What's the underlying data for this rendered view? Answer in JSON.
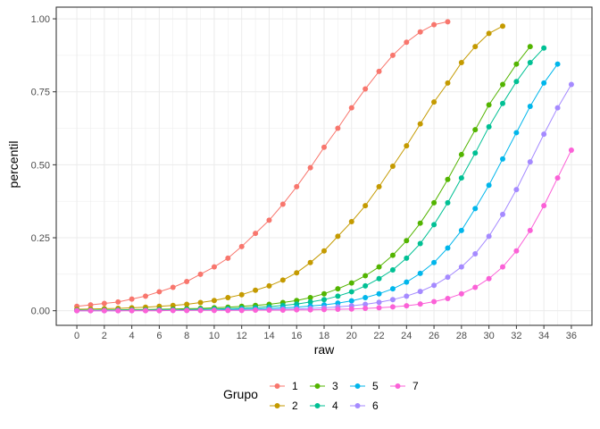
{
  "chart_data": {
    "type": "line",
    "xlabel": "raw",
    "ylabel": "percentil",
    "xlim": [
      -1.5,
      37.5
    ],
    "ylim": [
      -0.05,
      1.04
    ],
    "x_ticks": [
      0,
      2,
      4,
      6,
      8,
      10,
      12,
      14,
      16,
      18,
      20,
      22,
      24,
      26,
      28,
      30,
      32,
      34,
      36
    ],
    "x_tick_labels": [
      "0",
      "2",
      "4",
      "6",
      "8",
      "10",
      "12",
      "14",
      "16",
      "18",
      "20",
      "22",
      "24",
      "26",
      "28",
      "30",
      "32",
      "34",
      "36"
    ],
    "y_ticks": [
      0,
      0.25,
      0.5,
      0.75,
      1
    ],
    "y_tick_labels": [
      "0.00",
      "0.25",
      "0.50",
      "0.75",
      "1.00"
    ],
    "grid": true,
    "legend": {
      "title": "Grupo",
      "position": "bottom"
    },
    "series": [
      {
        "name": "1",
        "color": "#F8766D",
        "x": [
          0,
          1,
          2,
          3,
          4,
          5,
          6,
          7,
          8,
          9,
          10,
          11,
          12,
          13,
          14,
          15,
          16,
          17,
          18,
          19,
          20,
          21,
          22,
          23,
          24,
          25,
          26,
          27
        ],
        "y": [
          0.015,
          0.02,
          0.025,
          0.03,
          0.04,
          0.05,
          0.065,
          0.08,
          0.1,
          0.125,
          0.15,
          0.18,
          0.22,
          0.265,
          0.31,
          0.365,
          0.425,
          0.49,
          0.56,
          0.625,
          0.695,
          0.76,
          0.82,
          0.875,
          0.92,
          0.955,
          0.98,
          0.99
        ]
      },
      {
        "name": "2",
        "color": "#C49A00",
        "x": [
          0,
          1,
          2,
          3,
          4,
          5,
          6,
          7,
          8,
          9,
          10,
          11,
          12,
          13,
          14,
          15,
          16,
          17,
          18,
          19,
          20,
          21,
          22,
          23,
          24,
          25,
          26,
          27,
          28,
          29,
          30,
          31
        ],
        "y": [
          0.005,
          0.006,
          0.007,
          0.008,
          0.01,
          0.012,
          0.015,
          0.018,
          0.022,
          0.028,
          0.035,
          0.045,
          0.055,
          0.07,
          0.085,
          0.105,
          0.13,
          0.165,
          0.205,
          0.255,
          0.305,
          0.36,
          0.425,
          0.495,
          0.565,
          0.64,
          0.715,
          0.78,
          0.85,
          0.905,
          0.95,
          0.975
        ]
      },
      {
        "name": "3",
        "color": "#53B400",
        "x": [
          0,
          1,
          2,
          3,
          4,
          5,
          6,
          7,
          8,
          9,
          10,
          11,
          12,
          13,
          14,
          15,
          16,
          17,
          18,
          19,
          20,
          21,
          22,
          23,
          24,
          25,
          26,
          27,
          28,
          29,
          30,
          31,
          32,
          33
        ],
        "y": [
          0.002,
          0.002,
          0.003,
          0.003,
          0.004,
          0.004,
          0.005,
          0.006,
          0.007,
          0.008,
          0.01,
          0.012,
          0.015,
          0.018,
          0.022,
          0.028,
          0.035,
          0.045,
          0.058,
          0.075,
          0.095,
          0.12,
          0.15,
          0.19,
          0.24,
          0.3,
          0.37,
          0.45,
          0.535,
          0.62,
          0.705,
          0.775,
          0.845,
          0.905
        ]
      },
      {
        "name": "4",
        "color": "#00C094",
        "x": [
          0,
          1,
          2,
          3,
          4,
          5,
          6,
          7,
          8,
          9,
          10,
          11,
          12,
          13,
          14,
          15,
          16,
          17,
          18,
          19,
          20,
          21,
          22,
          23,
          24,
          25,
          26,
          27,
          28,
          29,
          30,
          31,
          32,
          33,
          34
        ],
        "y": [
          0.001,
          0.001,
          0.001,
          0.002,
          0.002,
          0.002,
          0.003,
          0.003,
          0.004,
          0.005,
          0.006,
          0.007,
          0.009,
          0.011,
          0.014,
          0.018,
          0.023,
          0.03,
          0.038,
          0.05,
          0.065,
          0.085,
          0.11,
          0.14,
          0.18,
          0.23,
          0.295,
          0.37,
          0.455,
          0.54,
          0.63,
          0.71,
          0.785,
          0.85,
          0.9
        ]
      },
      {
        "name": "5",
        "color": "#00B6EB",
        "x": [
          0,
          1,
          2,
          3,
          4,
          5,
          6,
          7,
          8,
          9,
          10,
          11,
          12,
          13,
          14,
          15,
          16,
          17,
          18,
          19,
          20,
          21,
          22,
          23,
          24,
          25,
          26,
          27,
          28,
          29,
          30,
          31,
          32,
          33,
          34,
          35
        ],
        "y": [
          0.001,
          0.001,
          0.001,
          0.001,
          0.001,
          0.001,
          0.002,
          0.002,
          0.002,
          0.003,
          0.003,
          0.004,
          0.005,
          0.006,
          0.008,
          0.01,
          0.012,
          0.016,
          0.02,
          0.026,
          0.034,
          0.045,
          0.058,
          0.075,
          0.098,
          0.128,
          0.165,
          0.215,
          0.275,
          0.35,
          0.43,
          0.52,
          0.61,
          0.7,
          0.78,
          0.845
        ]
      },
      {
        "name": "6",
        "color": "#A58AFF",
        "x": [
          0,
          1,
          2,
          3,
          4,
          5,
          6,
          7,
          8,
          9,
          10,
          11,
          12,
          13,
          14,
          15,
          16,
          17,
          18,
          19,
          20,
          21,
          22,
          23,
          24,
          25,
          26,
          27,
          28,
          29,
          30,
          31,
          32,
          33,
          34,
          35,
          36
        ],
        "y": [
          0.0,
          0.0,
          0.0,
          0.0,
          0.001,
          0.001,
          0.001,
          0.001,
          0.001,
          0.002,
          0.002,
          0.002,
          0.003,
          0.003,
          0.004,
          0.005,
          0.006,
          0.008,
          0.01,
          0.013,
          0.017,
          0.022,
          0.029,
          0.038,
          0.05,
          0.066,
          0.087,
          0.115,
          0.15,
          0.195,
          0.255,
          0.33,
          0.415,
          0.51,
          0.605,
          0.695,
          0.775
        ]
      },
      {
        "name": "7",
        "color": "#FB61D7",
        "x": [
          0,
          1,
          2,
          3,
          4,
          5,
          6,
          7,
          8,
          9,
          10,
          11,
          12,
          13,
          14,
          15,
          16,
          17,
          18,
          19,
          20,
          21,
          22,
          23,
          24,
          25,
          26,
          27,
          28,
          29,
          30,
          31,
          32,
          33,
          34,
          35,
          36
        ],
        "y": [
          0.0,
          0.0,
          0.0,
          0.0,
          0.0,
          0.0,
          0.0,
          0.001,
          0.001,
          0.001,
          0.001,
          0.001,
          0.001,
          0.002,
          0.002,
          0.002,
          0.003,
          0.003,
          0.004,
          0.005,
          0.006,
          0.008,
          0.01,
          0.013,
          0.017,
          0.023,
          0.031,
          0.042,
          0.058,
          0.08,
          0.11,
          0.15,
          0.205,
          0.275,
          0.36,
          0.455,
          0.55
        ]
      }
    ]
  }
}
